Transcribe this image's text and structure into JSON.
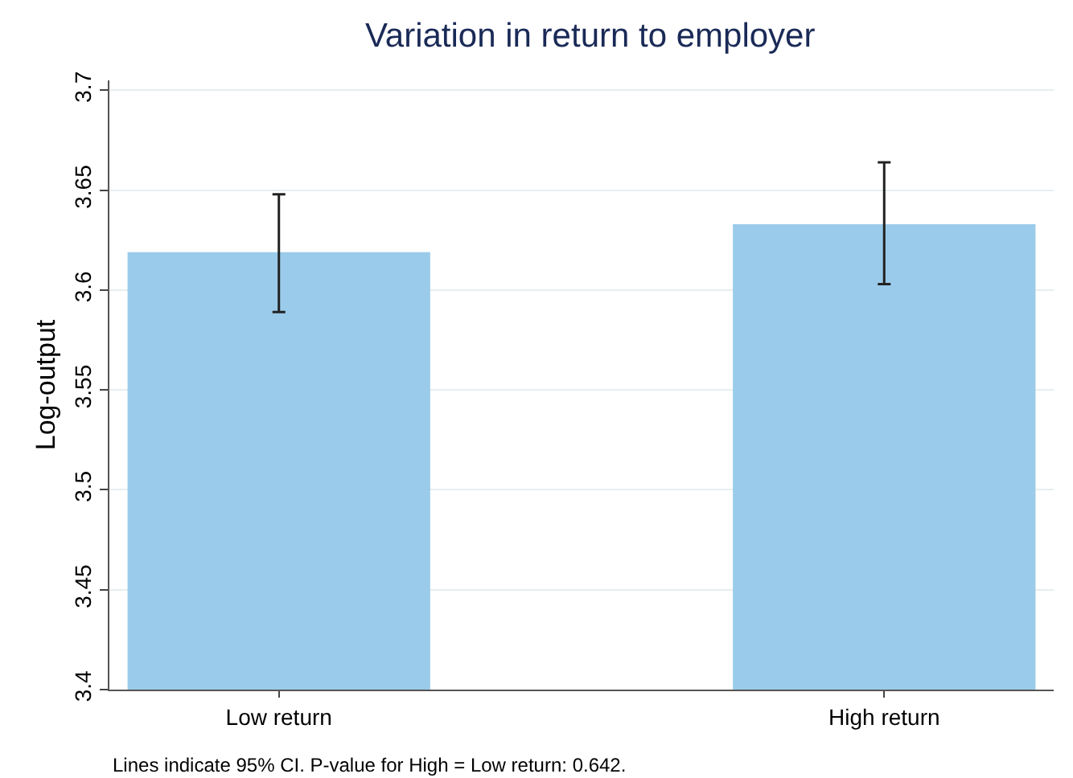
{
  "chart_data": {
    "type": "bar",
    "title": "Variation in return to employer",
    "ylabel": "Log-output",
    "categories": [
      "Low return",
      "High return"
    ],
    "values": [
      3.619,
      3.633
    ],
    "errors": [
      [
        3.589,
        3.648
      ],
      [
        3.603,
        3.664
      ]
    ],
    "color": "#9acbea",
    "ylim": [
      3.4,
      3.705
    ],
    "yticks": [
      3.4,
      3.45,
      3.5,
      3.55,
      3.6,
      3.65,
      3.7
    ],
    "grid": "y",
    "annotations": [
      "Lines indicate 95% CI. P-value for High = Low return: 0.642."
    ]
  }
}
